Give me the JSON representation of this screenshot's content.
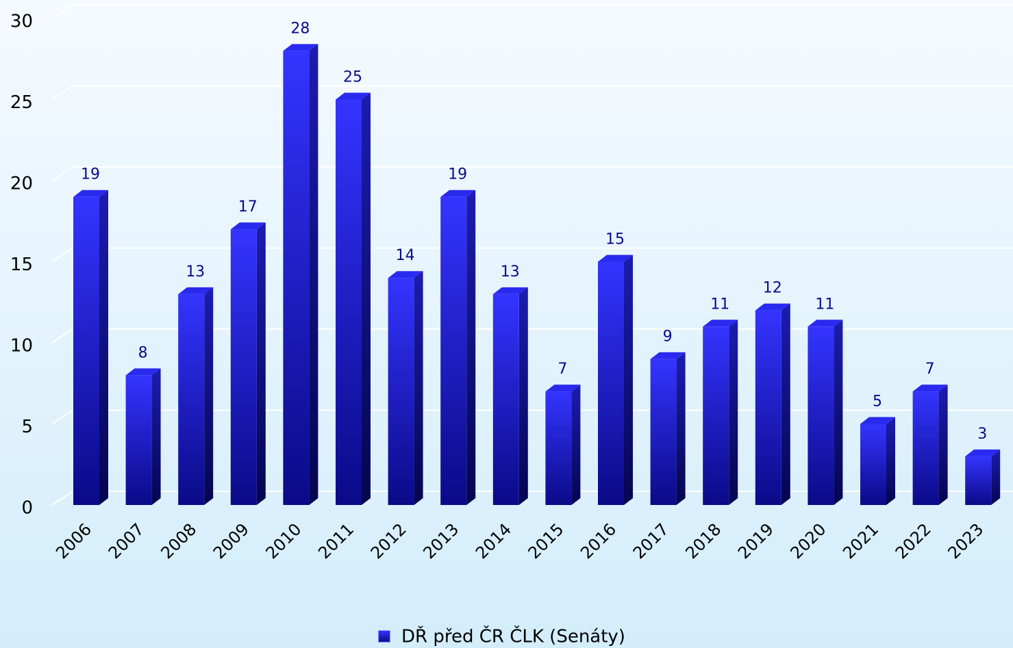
{
  "chart_data": {
    "type": "bar",
    "categories": [
      "2006",
      "2007",
      "2008",
      "2009",
      "2010",
      "2011",
      "2012",
      "2013",
      "2014",
      "2015",
      "2016",
      "2017",
      "2018",
      "2019",
      "2020",
      "2021",
      "2022",
      "2023"
    ],
    "series": [
      {
        "name": "DŘ před ČR ČLK (Senáty)",
        "color": "#2a2aef",
        "values": [
          19,
          8,
          13,
          17,
          28,
          25,
          14,
          19,
          13,
          7,
          15,
          9,
          11,
          12,
          11,
          5,
          7,
          3
        ]
      }
    ],
    "ylim": [
      0,
      30
    ],
    "yticks": [
      0,
      5,
      10,
      15,
      20,
      25,
      30
    ],
    "grid": true,
    "legend": "bottom"
  }
}
